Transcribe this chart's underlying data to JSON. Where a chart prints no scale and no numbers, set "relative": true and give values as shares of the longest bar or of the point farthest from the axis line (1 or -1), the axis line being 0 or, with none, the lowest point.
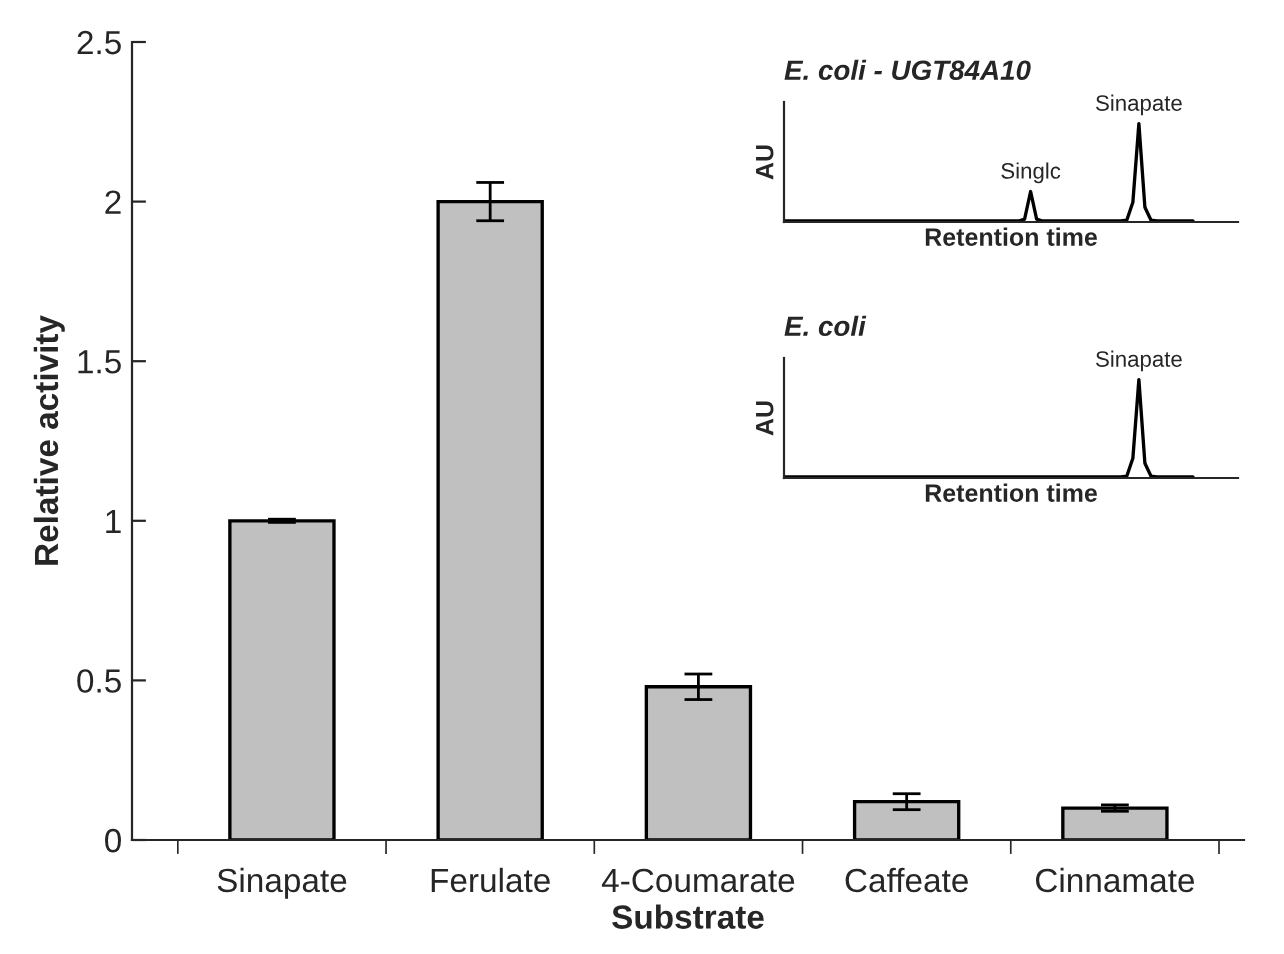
{
  "chart_data": [
    {
      "type": "bar",
      "xlabel": "Substrate",
      "ylabel": "Relative activity",
      "categories": [
        "Sinapate",
        "Ferulate",
        "4-Coumarate",
        "Caffeate",
        "Cinnamate"
      ],
      "values": [
        1.0,
        2.0,
        0.48,
        0.12,
        0.1
      ],
      "errors": [
        0.005,
        0.06,
        0.04,
        0.025,
        0.01
      ],
      "color": "#c0c0c0",
      "ylim": [
        0,
        2.5
      ],
      "yticks": [
        0,
        0.5,
        1,
        1.5,
        2,
        2.5
      ],
      "grid": false
    },
    {
      "type": "line",
      "title": "E. coli - UGT84A10",
      "xlabel": "Retention time",
      "ylabel": "AU",
      "relative": true,
      "categories": [
        null,
        null,
        null,
        null,
        null,
        null,
        null,
        null,
        null,
        null,
        null,
        null,
        null,
        null,
        null,
        null,
        null,
        null,
        null,
        null,
        null,
        null,
        null,
        null,
        null,
        null,
        null,
        null,
        null,
        null,
        null,
        null,
        null,
        null,
        null,
        null,
        null,
        null,
        null,
        null,
        null,
        null,
        null,
        null,
        null,
        null,
        null,
        null,
        null,
        null,
        null,
        null,
        null,
        null,
        null,
        null,
        null,
        null,
        null,
        null,
        null,
        null,
        null,
        null,
        null,
        null,
        null,
        null,
        null
      ],
      "series": [
        {
          "color": "#000000",
          "values": [
            0.01,
            0.01,
            0.01,
            0.01,
            0.01,
            0.01,
            0.01,
            0.01,
            0.01,
            0.01,
            0.01,
            0.01,
            0.01,
            0.01,
            0.01,
            0.01,
            0.01,
            0.01,
            0.01,
            0.01,
            0.01,
            0.01,
            0.01,
            0.01,
            0.01,
            0.01,
            0.01,
            0.01,
            0.01,
            0.01,
            0.01,
            0.01,
            0.01,
            0.01,
            0.01,
            0.01,
            0.01,
            0.01,
            0.01,
            0.01,
            0.03,
            0.31,
            0.03,
            0.01,
            0.01,
            0.01,
            0.01,
            0.01,
            0.01,
            0.01,
            0.01,
            0.01,
            0.01,
            0.01,
            0.01,
            0.01,
            0.01,
            0.02,
            0.2,
            1,
            0.15,
            0.02,
            0.01,
            0.01,
            0.01,
            0.01,
            0.01,
            0.01,
            0.01
          ]
        }
      ],
      "annotations": [
        {
          "text": "Singlc",
          "y": 0.31
        },
        {
          "text": "Sinapate",
          "y": 1
        }
      ]
    },
    {
      "type": "line",
      "title": "E. coli",
      "xlabel": "Retention time",
      "ylabel": "AU",
      "relative": true,
      "categories": [
        null,
        null,
        null,
        null,
        null,
        null,
        null,
        null,
        null,
        null,
        null,
        null,
        null,
        null,
        null,
        null,
        null,
        null,
        null,
        null,
        null,
        null,
        null,
        null,
        null,
        null,
        null,
        null,
        null,
        null,
        null,
        null,
        null,
        null,
        null,
        null,
        null,
        null,
        null,
        null,
        null,
        null,
        null,
        null,
        null,
        null,
        null,
        null,
        null,
        null,
        null,
        null,
        null,
        null,
        null,
        null,
        null,
        null,
        null,
        null,
        null,
        null,
        null,
        null,
        null,
        null,
        null,
        null,
        null
      ],
      "series": [
        {
          "color": "#000000",
          "values": [
            0.01,
            0.01,
            0.01,
            0.01,
            0.01,
            0.01,
            0.01,
            0.01,
            0.01,
            0.01,
            0.01,
            0.01,
            0.01,
            0.01,
            0.01,
            0.01,
            0.01,
            0.01,
            0.01,
            0.01,
            0.01,
            0.01,
            0.01,
            0.01,
            0.01,
            0.01,
            0.01,
            0.01,
            0.01,
            0.01,
            0.01,
            0.01,
            0.01,
            0.01,
            0.01,
            0.01,
            0.01,
            0.01,
            0.01,
            0.01,
            0.01,
            0.01,
            0.01,
            0.01,
            0.01,
            0.01,
            0.01,
            0.01,
            0.01,
            0.01,
            0.01,
            0.01,
            0.01,
            0.01,
            0.01,
            0.01,
            0.01,
            0.02,
            0.2,
            1,
            0.15,
            0.02,
            0.01,
            0.01,
            0.01,
            0.01,
            0.01,
            0.01,
            0.01
          ]
        }
      ],
      "annotations": [
        {
          "text": "Sinapate",
          "y": 1
        }
      ]
    }
  ]
}
